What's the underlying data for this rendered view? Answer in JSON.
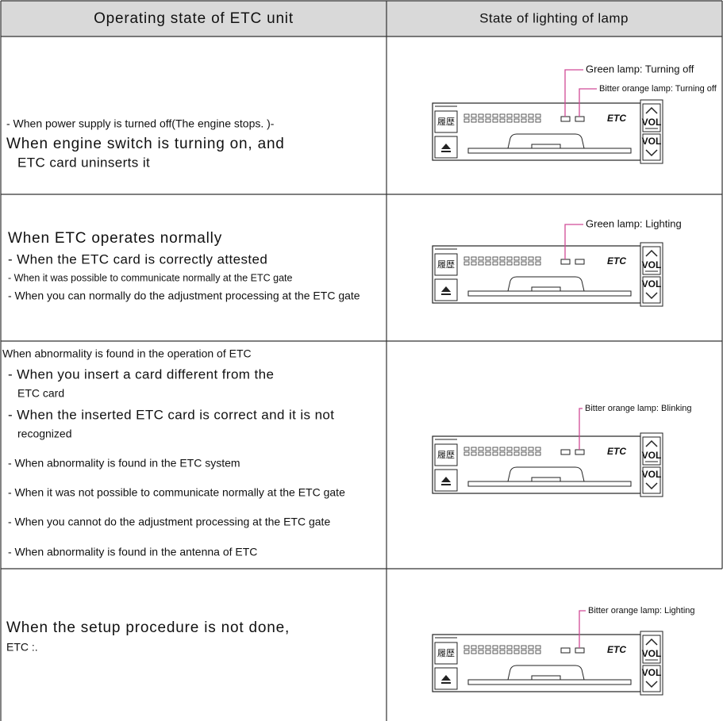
{
  "table": {
    "headers": [
      "Operating state of ETC unit",
      "State of lighting of lamp"
    ],
    "rows": [
      {
        "state": [
          "- When power supply is turned off(The engine stops. )-",
          "When engine switch is turning on, and",
          "ETC card uninserts it"
        ],
        "lamp_labels": [
          "Green lamp: Turning off",
          "Bitter orange lamp: Turning off"
        ]
      },
      {
        "state": [
          "When ETC operates normally",
          "-  When the ETC card is correctly attested",
          "-  When it was possible to communicate normally at the ETC gate",
          "-  When you can normally do the adjustment processing at the ETC gate"
        ],
        "lamp_labels": [
          "Green lamp: Lighting"
        ]
      },
      {
        "state": [
          "When abnormality is found in the operation of ETC",
          "-  When you insert a card different from the",
          "ETC card",
          "-  When the inserted ETC card is correct and it is not",
          "recognized",
          "-  When abnormality is found in the ETC system",
          "-  When it was not possible to communicate normally at the ETC gate",
          "-  When you cannot do the adjustment processing at the ETC gate",
          "-  When abnormality is found in the antenna of ETC"
        ],
        "lamp_labels": [
          "Bitter orange lamp: Blinking"
        ]
      },
      {
        "state": [
          "When the setup procedure is not done,",
          "ETC :."
        ],
        "lamp_labels": [
          "Bitter orange lamp: Lighting"
        ]
      }
    ]
  },
  "device": {
    "history": "履歴",
    "brand": "ETC",
    "vol": "VOL"
  }
}
